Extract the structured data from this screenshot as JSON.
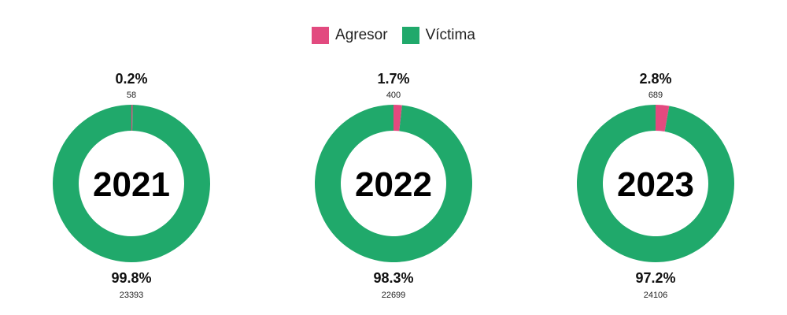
{
  "chart_data": [
    {
      "type": "pie",
      "center_label": "2021",
      "categories": [
        "Agresor",
        "Víctima"
      ],
      "values": [
        58,
        23393
      ],
      "percent_labels": [
        "0.2%",
        "99.8%"
      ],
      "count_labels": [
        "58",
        "23393"
      ],
      "colors": [
        "#e24a7f",
        "#20a96b"
      ]
    },
    {
      "type": "pie",
      "center_label": "2022",
      "categories": [
        "Agresor",
        "Víctima"
      ],
      "values": [
        400,
        22699
      ],
      "percent_labels": [
        "1.7%",
        "98.3%"
      ],
      "count_labels": [
        "400",
        "22699"
      ],
      "colors": [
        "#e24a7f",
        "#20a96b"
      ]
    },
    {
      "type": "pie",
      "center_label": "2023",
      "categories": [
        "Agresor",
        "Víctima"
      ],
      "values": [
        689,
        24106
      ],
      "percent_labels": [
        "2.8%",
        "97.2%"
      ],
      "count_labels": [
        "689",
        "24106"
      ],
      "colors": [
        "#e24a7f",
        "#20a96b"
      ]
    }
  ],
  "legend": {
    "items": [
      {
        "label": "Agresor",
        "color": "#e24a7f"
      },
      {
        "label": "Víctima",
        "color": "#20a96b"
      }
    ],
    "position": "top-center"
  }
}
